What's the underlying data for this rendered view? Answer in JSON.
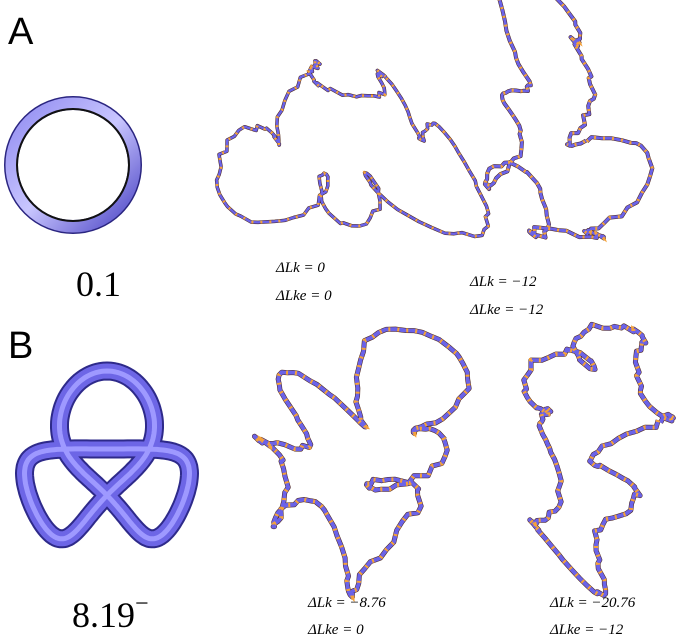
{
  "panels": [
    {
      "label": "A",
      "knot": {
        "name": "0.1"
      },
      "conformations": [
        {
          "linking": "ΔLk = 0",
          "excess": "ΔLke = 0"
        },
        {
          "linking": "ΔLk = −12",
          "excess": "ΔLke = −12"
        }
      ]
    },
    {
      "label": "B",
      "knot": {
        "name": "8.19",
        "superscript": "−"
      },
      "conformations": [
        {
          "linking": "ΔLk = −8.76",
          "excess": "ΔLke = 0"
        },
        {
          "linking": "ΔLk = −20.76",
          "excess": "ΔLke = −12"
        }
      ]
    }
  ]
}
